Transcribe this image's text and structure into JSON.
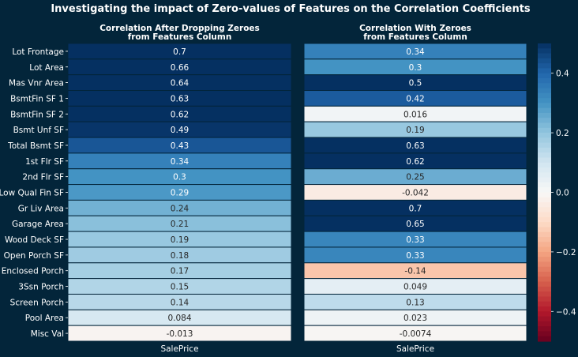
{
  "title": "Investigating the impact of Zero-values of Features on the Correlation Coefficients",
  "row_labels": [
    "Lot Frontage",
    "Lot Area",
    "Mas Vnr Area",
    "BsmtFin SF 1",
    "BsmtFin SF 2",
    "Bsmt Unf SF",
    "Total Bsmt SF",
    "1st Flr SF",
    "2nd Flr SF",
    "Low Qual Fin SF",
    "Gr Liv Area",
    "Garage Area",
    "Wood Deck SF",
    "Open Porch SF",
    "Enclosed Porch",
    "3Ssn Porch",
    "Screen Porch",
    "Pool Area",
    "Misc Val"
  ],
  "colorbar": {
    "vmin": -0.5,
    "vmax": 0.5,
    "colormap": "RdBu",
    "ticks": [
      "0.4",
      "0.2",
      "0.0",
      "−0.2",
      "−0.4"
    ],
    "tick_values": [
      0.4,
      0.2,
      0.0,
      -0.2,
      -0.4
    ]
  },
  "chart_data": [
    {
      "type": "heatmap",
      "title": "Correlation After Dropping Zeroes\nfrom Features Column",
      "xlabel": "",
      "ylabel": "",
      "x_tick": "SalePrice",
      "labels": [
        "0.7",
        "0.66",
        "0.64",
        "0.63",
        "0.62",
        "0.49",
        "0.43",
        "0.34",
        "0.3",
        "0.29",
        "0.24",
        "0.21",
        "0.19",
        "0.18",
        "0.17",
        "0.15",
        "0.14",
        "0.084",
        "-0.013"
      ],
      "values": [
        0.7,
        0.66,
        0.64,
        0.63,
        0.62,
        0.49,
        0.43,
        0.34,
        0.3,
        0.29,
        0.24,
        0.21,
        0.19,
        0.18,
        0.17,
        0.15,
        0.14,
        0.084,
        -0.013
      ]
    },
    {
      "type": "heatmap",
      "title": "Correlation With Zeroes\nfrom Features Column",
      "xlabel": "",
      "ylabel": "",
      "x_tick": "SalePrice",
      "labels": [
        "0.34",
        "0.3",
        "0.5",
        "0.42",
        "0.016",
        "0.19",
        "0.63",
        "0.62",
        "0.25",
        "-0.042",
        "0.7",
        "0.65",
        "0.33",
        "0.33",
        "-0.14",
        "0.049",
        "0.13",
        "0.023",
        "-0.0074"
      ],
      "values": [
        0.34,
        0.3,
        0.5,
        0.42,
        0.016,
        0.19,
        0.63,
        0.62,
        0.25,
        -0.042,
        0.7,
        0.65,
        0.33,
        0.33,
        -0.14,
        0.049,
        0.13,
        0.023,
        -0.0074
      ]
    }
  ]
}
